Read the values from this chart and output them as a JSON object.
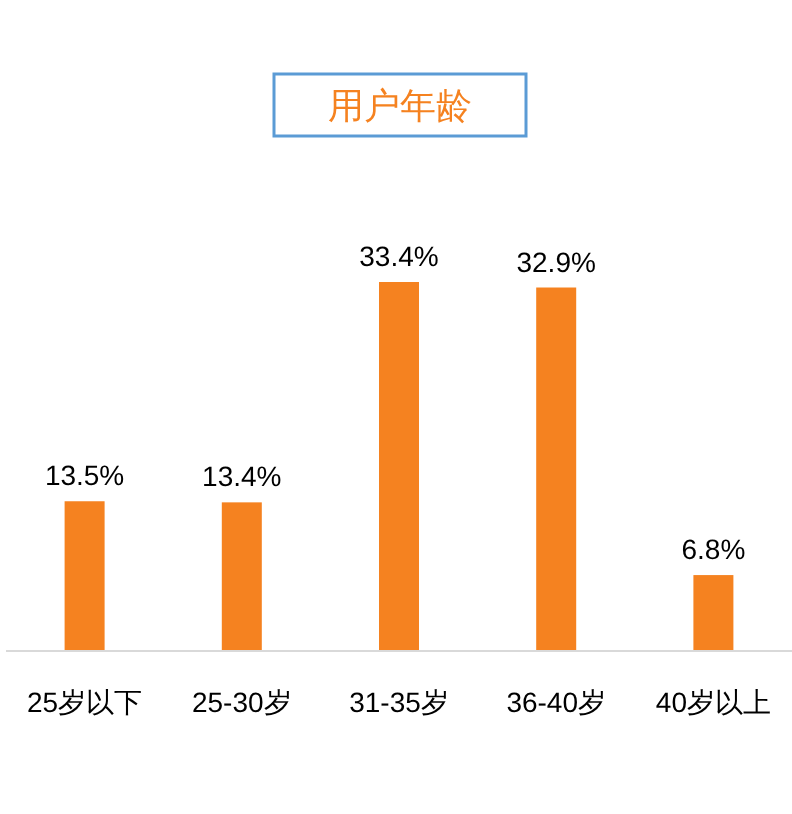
{
  "chart_data": {
    "type": "bar",
    "title": "用户年龄",
    "categories": [
      "25岁以下",
      "25-30岁",
      "31-35岁",
      "36-40岁",
      "40岁以上"
    ],
    "values": [
      13.5,
      13.4,
      33.4,
      32.9,
      6.8
    ],
    "value_labels": [
      "13.5%",
      "13.4%",
      "33.4%",
      "32.9%",
      "6.8%"
    ],
    "color": "#f58220"
  }
}
